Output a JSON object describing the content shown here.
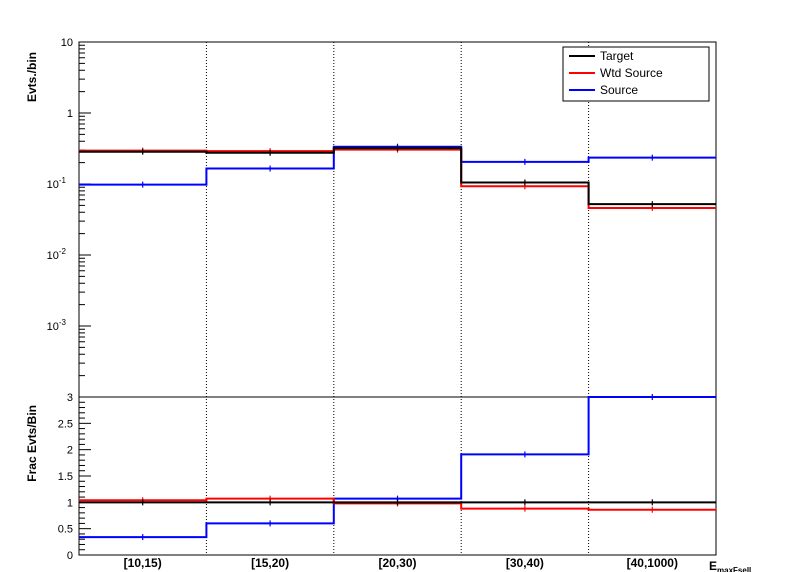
{
  "chart_data": [
    {
      "type": "line",
      "panel": "upper",
      "ylabel": "Evts./bin",
      "yscale": "log",
      "ylim": [
        0.0001,
        10
      ],
      "yticks": [
        {
          "v": 10,
          "base": "10",
          "exp": ""
        },
        {
          "v": 1,
          "base": "1",
          "exp": ""
        },
        {
          "v": 0.1,
          "base": "10",
          "exp": "-1"
        },
        {
          "v": 0.01,
          "base": "10",
          "exp": "-2"
        },
        {
          "v": 0.001,
          "base": "10",
          "exp": "-3"
        }
      ],
      "categories": [
        "[10,15)",
        "[15,20)",
        "[20,30)",
        "[30,40)",
        "[40,1000)"
      ],
      "grid_x": true,
      "legend_position": "top-right",
      "series": [
        {
          "name": "Target",
          "color": "#000000",
          "values": [
            0.285,
            0.275,
            0.32,
            0.105,
            0.052
          ]
        },
        {
          "name": "Wtd Source",
          "color": "#ff0000",
          "values": [
            0.295,
            0.29,
            0.305,
            0.093,
            0.046
          ]
        },
        {
          "name": "Source",
          "color": "#0000ff",
          "values": [
            0.098,
            0.165,
            0.335,
            0.205,
            0.235
          ]
        }
      ]
    },
    {
      "type": "line",
      "panel": "lower",
      "ylabel": "Frac Evts/Bin",
      "ylim": [
        0,
        3
      ],
      "yticks": [
        "0",
        "0.5",
        "1",
        "1.5",
        "2",
        "2.5",
        "3"
      ],
      "categories": [
        "[10,15)",
        "[15,20)",
        "[20,30)",
        "[30,40)",
        "[40,1000)"
      ],
      "xlabel": "E",
      "xlabel_sub": "maxFsell",
      "grid_x": true,
      "series": [
        {
          "name": "Target",
          "color": "#000000",
          "values": [
            1.0,
            1.0,
            1.0,
            1.0,
            1.0
          ]
        },
        {
          "name": "Wtd Source",
          "color": "#ff0000",
          "values": [
            1.04,
            1.07,
            0.98,
            0.88,
            0.86
          ]
        },
        {
          "name": "Source",
          "color": "#0000ff",
          "values": [
            0.34,
            0.6,
            1.07,
            1.91,
            3.0
          ]
        }
      ]
    }
  ]
}
